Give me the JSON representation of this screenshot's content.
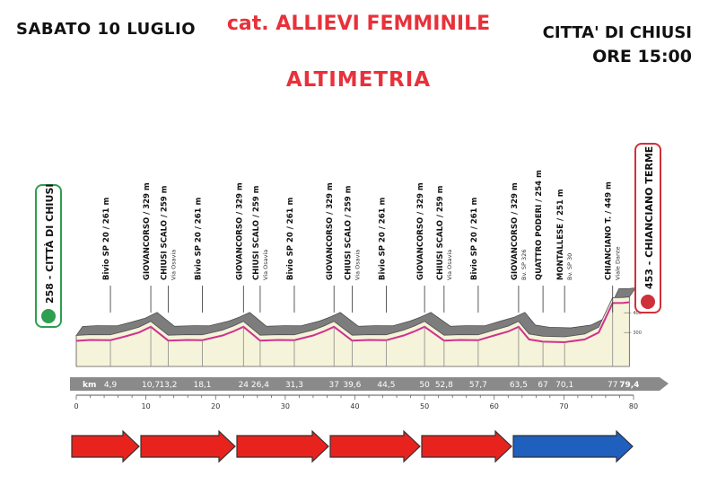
{
  "header": {
    "date": "SABATO 10 LUGLIO",
    "category": "cat. ALLIEVI FEMMINILE",
    "title": "ALTIMETRIA",
    "city": "CITTA' DI CHIUSI",
    "time": "ORE 15:00"
  },
  "chart_data": {
    "type": "area",
    "title": "ALTIMETRIA",
    "x_unit": "km",
    "xlim": [
      0,
      80
    ],
    "ylim": [
      200,
      460
    ],
    "x_axis_ticks": [
      0,
      10,
      20,
      30,
      40,
      50,
      60,
      70,
      80
    ],
    "y_axis_ticks": [
      300,
      400
    ],
    "start": {
      "label": "258 - CITTÀ DI CHIUSI",
      "km": 0,
      "elevation": 258
    },
    "finish": {
      "label": "453 - CHIANCIANO TERME",
      "km": 79.4,
      "elevation": 453
    },
    "km_labels": [
      "4,9",
      "10,7",
      "13,2",
      "18,1",
      "24",
      "26,4",
      "31,3",
      "37",
      "39,6",
      "44,5",
      "50",
      "52,8",
      "57,7",
      "63,5",
      "67",
      "70,1",
      "77",
      "79,4"
    ],
    "waypoints": [
      {
        "km": 4.9,
        "name": "Bivio SP 20 / 261 m",
        "sub": ""
      },
      {
        "km": 10.7,
        "name": "GIOVANCORSO / 329 m",
        "sub": ""
      },
      {
        "km": 13.2,
        "name": "CHIUSI SCALO / 259 m",
        "sub": "Via Osavia"
      },
      {
        "km": 18.1,
        "name": "Bivio SP 20 / 261 m",
        "sub": ""
      },
      {
        "km": 24,
        "name": "GIOVANCORSO / 329 m",
        "sub": ""
      },
      {
        "km": 26.4,
        "name": "CHIUSI SCALO / 259 m",
        "sub": "Via Osavia"
      },
      {
        "km": 31.3,
        "name": "Bivio SP 20 / 261 m",
        "sub": ""
      },
      {
        "km": 37,
        "name": "GIOVANCORSO / 329 m",
        "sub": ""
      },
      {
        "km": 39.6,
        "name": "CHIUSI SCALO / 259 m",
        "sub": "Via Osavia"
      },
      {
        "km": 44.5,
        "name": "Bivio SP 20 / 261 m",
        "sub": ""
      },
      {
        "km": 50,
        "name": "GIOVANCORSO / 329 m",
        "sub": ""
      },
      {
        "km": 52.8,
        "name": "CHIUSI SCALO / 259 m",
        "sub": "Via Osavia"
      },
      {
        "km": 57.7,
        "name": "Bivio SP 20 / 261 m",
        "sub": ""
      },
      {
        "km": 63.5,
        "name": "GIOVANCORSO / 329 m",
        "sub": "Bv. SP 326"
      },
      {
        "km": 67,
        "name": "QUATTRO PODERI / 254 m",
        "sub": ""
      },
      {
        "km": 70.1,
        "name": "MONTALLESE / 251 m",
        "sub": "Bv. SP 30"
      },
      {
        "km": 77,
        "name": "CHIANCIANO T. / 449 m",
        "sub": "Viale Dante"
      }
    ],
    "profile": {
      "km": [
        0,
        2,
        4.9,
        7,
        9,
        10.7,
        13.2,
        16,
        18.1,
        21,
        22.5,
        24,
        26.4,
        29,
        31.3,
        34,
        35.5,
        37,
        39.6,
        42,
        44.5,
        47,
        48.5,
        50,
        52.8,
        55,
        57.7,
        60,
        62,
        63.5,
        65,
        67,
        70.1,
        73,
        75,
        77,
        78.5,
        79.4
      ],
      "elevation": [
        258,
        262,
        261,
        280,
        300,
        329,
        259,
        262,
        261,
        285,
        305,
        329,
        259,
        262,
        261,
        285,
        305,
        329,
        259,
        262,
        261,
        285,
        305,
        329,
        259,
        262,
        261,
        285,
        305,
        329,
        265,
        254,
        251,
        265,
        300,
        449,
        450,
        453
      ]
    },
    "legs": [
      {
        "color": "#e8231e"
      },
      {
        "color": "#e8231e"
      },
      {
        "color": "#e8231e"
      },
      {
        "color": "#e8231e"
      },
      {
        "color": "#e8231e"
      },
      {
        "color": "#1f5fbd"
      }
    ]
  }
}
